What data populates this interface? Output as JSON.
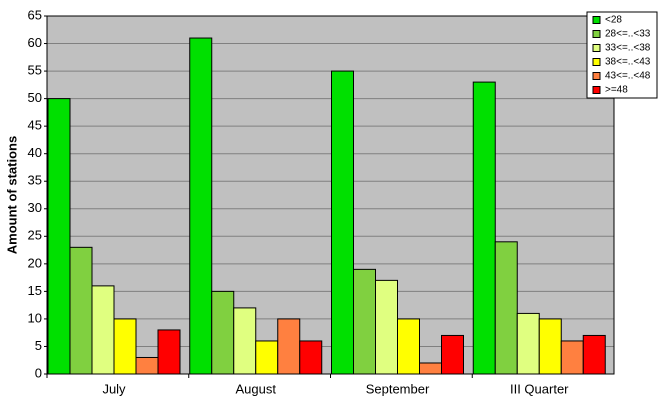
{
  "chart_data": {
    "type": "bar",
    "ylabel": "Amount of stations",
    "categories": [
      "July",
      "August",
      "September",
      "III Quarter"
    ],
    "series": [
      {
        "name": "<28",
        "color": "#00e000",
        "values": [
          50,
          61,
          55,
          53
        ]
      },
      {
        "name": "28<=..<33",
        "color": "#80d040",
        "values": [
          23,
          15,
          19,
          24
        ]
      },
      {
        "name": "33<=..<38",
        "color": "#e0ff80",
        "values": [
          16,
          12,
          17,
          11
        ]
      },
      {
        "name": "38<=..<43",
        "color": "#ffff00",
        "values": [
          10,
          6,
          10,
          10
        ]
      },
      {
        "name": "43<=..<48",
        "color": "#ff8040",
        "values": [
          3,
          10,
          2,
          6
        ]
      },
      {
        "name": ">=48",
        "color": "#ff0000",
        "values": [
          8,
          6,
          7,
          7
        ]
      }
    ],
    "ylim": [
      0,
      65
    ],
    "yticks": [
      0,
      5,
      10,
      15,
      20,
      25,
      30,
      35,
      40,
      45,
      50,
      55,
      60,
      65
    ],
    "grid": true,
    "legend": "top-right"
  }
}
